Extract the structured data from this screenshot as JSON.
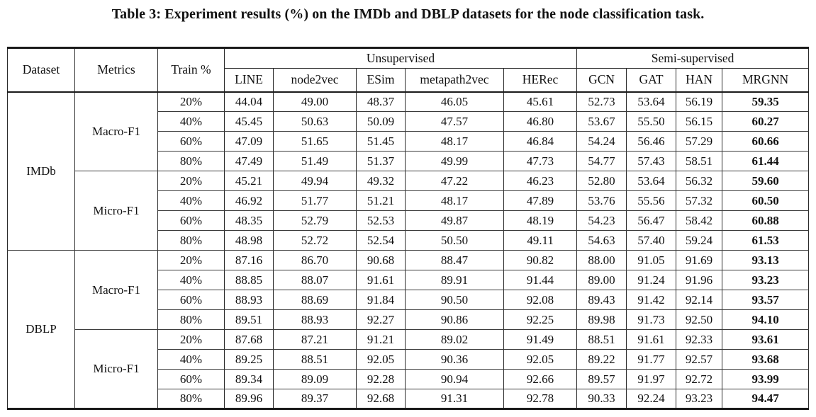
{
  "title": "Table 3: Experiment results (%) on the IMDb and DBLP datasets for the node classification task.",
  "table": {
    "corner_headers": {
      "dataset": "Dataset",
      "metrics": "Metrics",
      "train": "Train %"
    },
    "groups": [
      {
        "label": "Unsupervised",
        "methods": [
          "LINE",
          "node2vec",
          "ESim",
          "metapath2vec",
          "HERec"
        ]
      },
      {
        "label": "Semi-supervised",
        "methods": [
          "GCN",
          "GAT",
          "HAN",
          "MRGNN"
        ]
      }
    ],
    "bold_last_column": true,
    "colors": {
      "border": "#1a1a1a",
      "text": "#111111",
      "background": "#ffffff"
    },
    "sections": [
      {
        "dataset": "IMDb",
        "metrics": [
          {
            "name": "Macro-F1",
            "rows": [
              {
                "train": "20%",
                "values": [
                  "44.04",
                  "49.00",
                  "48.37",
                  "46.05",
                  "45.61",
                  "52.73",
                  "53.64",
                  "56.19",
                  "59.35"
                ]
              },
              {
                "train": "40%",
                "values": [
                  "45.45",
                  "50.63",
                  "50.09",
                  "47.57",
                  "46.80",
                  "53.67",
                  "55.50",
                  "56.15",
                  "60.27"
                ]
              },
              {
                "train": "60%",
                "values": [
                  "47.09",
                  "51.65",
                  "51.45",
                  "48.17",
                  "46.84",
                  "54.24",
                  "56.46",
                  "57.29",
                  "60.66"
                ]
              },
              {
                "train": "80%",
                "values": [
                  "47.49",
                  "51.49",
                  "51.37",
                  "49.99",
                  "47.73",
                  "54.77",
                  "57.43",
                  "58.51",
                  "61.44"
                ]
              }
            ]
          },
          {
            "name": "Micro-F1",
            "rows": [
              {
                "train": "20%",
                "values": [
                  "45.21",
                  "49.94",
                  "49.32",
                  "47.22",
                  "46.23",
                  "52.80",
                  "53.64",
                  "56.32",
                  "59.60"
                ]
              },
              {
                "train": "40%",
                "values": [
                  "46.92",
                  "51.77",
                  "51.21",
                  "48.17",
                  "47.89",
                  "53.76",
                  "55.56",
                  "57.32",
                  "60.50"
                ]
              },
              {
                "train": "60%",
                "values": [
                  "48.35",
                  "52.79",
                  "52.53",
                  "49.87",
                  "48.19",
                  "54.23",
                  "56.47",
                  "58.42",
                  "60.88"
                ]
              },
              {
                "train": "80%",
                "values": [
                  "48.98",
                  "52.72",
                  "52.54",
                  "50.50",
                  "49.11",
                  "54.63",
                  "57.40",
                  "59.24",
                  "61.53"
                ]
              }
            ]
          }
        ]
      },
      {
        "dataset": "DBLP",
        "metrics": [
          {
            "name": "Macro-F1",
            "rows": [
              {
                "train": "20%",
                "values": [
                  "87.16",
                  "86.70",
                  "90.68",
                  "88.47",
                  "90.82",
                  "88.00",
                  "91.05",
                  "91.69",
                  "93.13"
                ]
              },
              {
                "train": "40%",
                "values": [
                  "88.85",
                  "88.07",
                  "91.61",
                  "89.91",
                  "91.44",
                  "89.00",
                  "91.24",
                  "91.96",
                  "93.23"
                ]
              },
              {
                "train": "60%",
                "values": [
                  "88.93",
                  "88.69",
                  "91.84",
                  "90.50",
                  "92.08",
                  "89.43",
                  "91.42",
                  "92.14",
                  "93.57"
                ]
              },
              {
                "train": "80%",
                "values": [
                  "89.51",
                  "88.93",
                  "92.27",
                  "90.86",
                  "92.25",
                  "89.98",
                  "91.73",
                  "92.50",
                  "94.10"
                ]
              }
            ]
          },
          {
            "name": "Micro-F1",
            "rows": [
              {
                "train": "20%",
                "values": [
                  "87.68",
                  "87.21",
                  "91.21",
                  "89.02",
                  "91.49",
                  "88.51",
                  "91.61",
                  "92.33",
                  "93.61"
                ]
              },
              {
                "train": "40%",
                "values": [
                  "89.25",
                  "88.51",
                  "92.05",
                  "90.36",
                  "92.05",
                  "89.22",
                  "91.77",
                  "92.57",
                  "93.68"
                ]
              },
              {
                "train": "60%",
                "values": [
                  "89.34",
                  "89.09",
                  "92.28",
                  "90.94",
                  "92.66",
                  "89.57",
                  "91.97",
                  "92.72",
                  "93.99"
                ]
              },
              {
                "train": "80%",
                "values": [
                  "89.96",
                  "89.37",
                  "92.68",
                  "91.31",
                  "92.78",
                  "90.33",
                  "92.24",
                  "93.23",
                  "94.47"
                ]
              }
            ]
          }
        ]
      }
    ]
  }
}
